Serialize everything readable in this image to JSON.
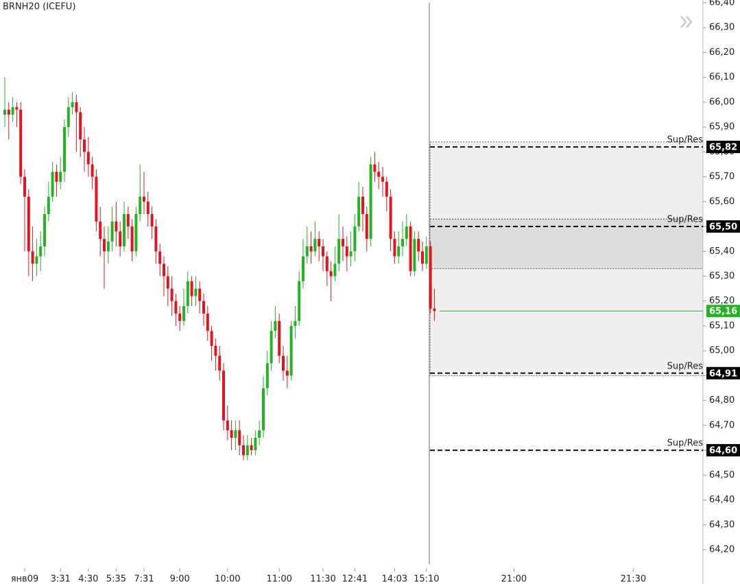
{
  "chart_data": {
    "type": "candlestick",
    "title": "BRNH20 (ICEFU)",
    "up_color": "#22b422",
    "down_color": "#e3141c",
    "ylim": [
      64.2,
      66.4
    ],
    "yticks": [
      {
        "value": 66.4,
        "label": "66,40"
      },
      {
        "value": 66.3,
        "label": "66,30"
      },
      {
        "value": 66.2,
        "label": "66,20"
      },
      {
        "value": 66.1,
        "label": "66,10"
      },
      {
        "value": 66.0,
        "label": "66,00"
      },
      {
        "value": 65.9,
        "label": "65,90"
      },
      {
        "value": 65.8,
        "label": "65,80"
      },
      {
        "value": 65.7,
        "label": "65,70"
      },
      {
        "value": 65.6,
        "label": "65,60"
      },
      {
        "value": 65.5,
        "label": "65,50"
      },
      {
        "value": 65.4,
        "label": "65,40"
      },
      {
        "value": 65.3,
        "label": "65,30"
      },
      {
        "value": 65.2,
        "label": "65,20"
      },
      {
        "value": 65.1,
        "label": "65,10"
      },
      {
        "value": 65.0,
        "label": "65,00"
      },
      {
        "value": 64.9,
        "label": "64,90"
      },
      {
        "value": 64.8,
        "label": "64,80"
      },
      {
        "value": 64.7,
        "label": "64,70"
      },
      {
        "value": 64.6,
        "label": "64,60"
      },
      {
        "value": 64.5,
        "label": "64,50"
      },
      {
        "value": 64.4,
        "label": "64,40"
      },
      {
        "value": 64.3,
        "label": "64,30"
      },
      {
        "value": 64.2,
        "label": "64,20"
      }
    ],
    "categories": [
      null,
      null,
      null,
      null,
      null,
      "янв09",
      null,
      null,
      null,
      null,
      null,
      null,
      null,
      null,
      "3:31",
      null,
      null,
      null,
      null,
      null,
      null,
      "4:30",
      null,
      null,
      null,
      null,
      null,
      null,
      "5:35",
      null,
      null,
      null,
      null,
      null,
      null,
      "7:31",
      null,
      null,
      null,
      null,
      null,
      null,
      null,
      null,
      "9:00",
      null,
      null,
      null,
      null,
      null,
      null,
      null,
      null,
      null,
      null,
      null,
      "10:00",
      null,
      null,
      null,
      null,
      null,
      null,
      null,
      null,
      null,
      null,
      null,
      null,
      "11:00",
      null,
      null,
      null,
      null,
      null,
      null,
      null,
      null,
      null,
      null,
      "11:30",
      null,
      null,
      null,
      null,
      null,
      null,
      null,
      "12:41",
      null,
      null,
      null,
      null,
      null,
      null,
      null,
      null,
      null,
      "14:03",
      null,
      null,
      null,
      null,
      null,
      null,
      null,
      "15:10",
      null,
      null,
      null,
      null,
      null,
      null,
      null,
      null,
      null,
      null,
      null,
      null,
      null,
      null,
      null,
      null,
      null,
      null,
      null,
      null,
      null,
      "21:00",
      null,
      null,
      null,
      null,
      null,
      null,
      null,
      null,
      null,
      null,
      null,
      null,
      null,
      null,
      null,
      null,
      null,
      null,
      null,
      null,
      null,
      null,
      null,
      null,
      null,
      null,
      null,
      null,
      null,
      "21:30",
      null
    ],
    "open": [
      65.95,
      65.97,
      65.95,
      65.98,
      65.97,
      65.7,
      65.62,
      65.4,
      65.35,
      65.38,
      65.42,
      65.55,
      65.62,
      65.72,
      65.68,
      65.72,
      65.9,
      65.98,
      66.0,
      65.96,
      65.85,
      65.8,
      65.75,
      65.7,
      65.52,
      65.45,
      65.4,
      65.44,
      65.52,
      65.48,
      65.42,
      65.55,
      65.5,
      65.4,
      65.55,
      65.62,
      65.6,
      65.55,
      65.5,
      65.4,
      65.35,
      65.3,
      65.25,
      65.2,
      65.15,
      65.12,
      65.18,
      65.28,
      65.22,
      65.25,
      65.2,
      65.15,
      65.08,
      65.02,
      64.98,
      64.92,
      64.72,
      64.68,
      64.65,
      64.68,
      64.62,
      64.58,
      64.62,
      64.6,
      64.65,
      64.68,
      64.85,
      64.95,
      65.08,
      65.12,
      64.98,
      64.92,
      64.9,
      65.1,
      65.12,
      65.28,
      65.38,
      65.42,
      65.4,
      65.45,
      65.42,
      65.38,
      65.32,
      65.3,
      65.35,
      65.45,
      65.42,
      65.38,
      65.4,
      65.5,
      65.62,
      65.55,
      65.45,
      65.75,
      65.72,
      65.7,
      65.68,
      65.62,
      65.45,
      65.38,
      65.42,
      65.45,
      65.5,
      65.32,
      65.45,
      65.4,
      65.35,
      65.42,
      65.17,
      null,
      null,
      null,
      null,
      null,
      null,
      null,
      null,
      null,
      null,
      null,
      null,
      null,
      null,
      null,
      null,
      null,
      null,
      null,
      null,
      null,
      null,
      null,
      null,
      null,
      null,
      null,
      null,
      null,
      null,
      null,
      null,
      null,
      null,
      null,
      null,
      null,
      null,
      null,
      null,
      null,
      null,
      null,
      null,
      null,
      null,
      null,
      null,
      null,
      null,
      null
    ],
    "high": [
      66.1,
      66.0,
      66.02,
      66.0,
      66.0,
      65.73,
      65.65,
      65.5,
      65.45,
      65.48,
      65.58,
      65.68,
      65.76,
      65.75,
      65.78,
      65.93,
      66.02,
      66.04,
      66.03,
      65.98,
      65.9,
      65.86,
      65.78,
      65.73,
      65.58,
      65.5,
      65.5,
      65.58,
      65.6,
      65.52,
      65.6,
      65.58,
      65.53,
      65.58,
      65.75,
      65.72,
      65.64,
      65.58,
      65.53,
      65.43,
      65.38,
      65.34,
      65.3,
      65.23,
      65.18,
      65.25,
      65.32,
      65.3,
      65.3,
      65.28,
      65.23,
      65.18,
      65.1,
      65.05,
      65.02,
      64.95,
      64.78,
      64.72,
      64.72,
      64.72,
      64.66,
      64.66,
      64.65,
      64.68,
      64.72,
      64.9,
      65.0,
      65.12,
      65.18,
      65.15,
      65.02,
      64.98,
      65.12,
      65.18,
      65.32,
      65.45,
      65.5,
      65.48,
      65.52,
      65.48,
      65.45,
      65.4,
      65.36,
      65.42,
      65.55,
      65.5,
      65.46,
      65.48,
      65.55,
      65.68,
      65.66,
      65.58,
      65.78,
      65.8,
      65.76,
      65.74,
      65.7,
      65.65,
      65.48,
      65.48,
      65.52,
      65.55,
      65.52,
      65.48,
      65.48,
      65.44,
      65.46,
      65.44,
      65.25,
      null,
      null,
      null,
      null,
      null,
      null,
      null,
      null,
      null,
      null,
      null,
      null,
      null,
      null,
      null,
      null,
      null,
      null,
      null,
      null,
      null,
      null,
      null,
      null,
      null,
      null,
      null,
      null,
      null,
      null,
      null,
      null,
      null,
      null,
      null,
      null,
      null,
      null,
      null,
      null,
      null,
      null,
      null,
      null,
      null,
      null,
      null,
      null,
      null,
      null,
      null
    ],
    "low": [
      65.9,
      65.85,
      65.92,
      65.9,
      65.67,
      65.4,
      65.3,
      65.28,
      65.3,
      65.32,
      65.38,
      65.52,
      65.6,
      65.62,
      65.65,
      65.68,
      65.86,
      65.95,
      65.8,
      65.78,
      65.72,
      65.7,
      65.65,
      65.48,
      65.38,
      65.25,
      65.35,
      65.4,
      65.42,
      65.38,
      65.4,
      65.45,
      65.36,
      65.38,
      65.52,
      65.55,
      65.5,
      65.45,
      65.35,
      65.3,
      65.22,
      65.18,
      65.14,
      65.1,
      65.08,
      65.1,
      65.15,
      65.18,
      65.18,
      65.15,
      65.1,
      65.04,
      64.96,
      64.92,
      64.88,
      64.68,
      64.64,
      64.6,
      64.6,
      64.58,
      64.56,
      64.56,
      64.58,
      64.58,
      64.62,
      64.65,
      64.82,
      64.92,
      65.05,
      64.95,
      64.88,
      64.85,
      64.88,
      65.05,
      65.1,
      65.25,
      65.35,
      65.35,
      65.38,
      65.36,
      65.32,
      65.26,
      65.2,
      65.28,
      65.32,
      65.36,
      65.32,
      65.34,
      65.36,
      65.48,
      65.48,
      65.4,
      65.42,
      65.68,
      65.65,
      65.62,
      65.56,
      65.4,
      65.35,
      65.35,
      65.38,
      65.42,
      65.3,
      65.3,
      65.36,
      65.32,
      65.33,
      65.15,
      65.12,
      null,
      null,
      null,
      null,
      null,
      null,
      null,
      null,
      null,
      null,
      null,
      null,
      null,
      null,
      null,
      null,
      null,
      null,
      null,
      null,
      null,
      null,
      null,
      null,
      null,
      null,
      null,
      null,
      null,
      null,
      null,
      null,
      null,
      null,
      null,
      null,
      null,
      null,
      null,
      null,
      null,
      null,
      null,
      null,
      null,
      null,
      null,
      null,
      null,
      null,
      null
    ],
    "close": [
      65.97,
      65.95,
      65.98,
      65.97,
      65.7,
      65.62,
      65.4,
      65.35,
      65.38,
      65.42,
      65.55,
      65.62,
      65.72,
      65.68,
      65.72,
      65.9,
      65.98,
      66.0,
      65.96,
      65.85,
      65.8,
      65.75,
      65.7,
      65.52,
      65.45,
      65.4,
      65.44,
      65.52,
      65.48,
      65.42,
      65.55,
      65.5,
      65.4,
      65.55,
      65.62,
      65.6,
      65.55,
      65.5,
      65.4,
      65.35,
      65.3,
      65.25,
      65.2,
      65.15,
      65.12,
      65.18,
      65.28,
      65.22,
      65.25,
      65.2,
      65.15,
      65.08,
      65.02,
      64.98,
      64.92,
      64.72,
      64.68,
      64.65,
      64.68,
      64.62,
      64.58,
      64.62,
      64.6,
      64.65,
      64.68,
      64.85,
      64.95,
      65.08,
      65.12,
      64.98,
      64.92,
      64.9,
      65.1,
      65.12,
      65.28,
      65.38,
      65.42,
      65.4,
      65.45,
      65.42,
      65.38,
      65.32,
      65.3,
      65.35,
      65.45,
      65.42,
      65.38,
      65.4,
      65.5,
      65.62,
      65.55,
      65.45,
      65.75,
      65.72,
      65.7,
      65.68,
      65.62,
      65.45,
      65.38,
      65.42,
      65.45,
      65.5,
      65.32,
      65.45,
      65.4,
      65.35,
      65.42,
      65.17,
      65.16,
      null,
      null,
      null,
      null,
      null,
      null,
      null,
      null,
      null,
      null,
      null,
      null,
      null,
      null,
      null,
      null,
      null,
      null,
      null,
      null,
      null,
      null,
      null,
      null,
      null,
      null,
      null,
      null,
      null,
      null,
      null,
      null,
      null,
      null,
      null,
      null,
      null,
      null,
      null,
      null,
      null,
      null,
      null,
      null,
      null,
      null,
      null,
      null,
      null,
      null,
      null
    ],
    "zones": [
      {
        "from": 65.84,
        "to": 64.9,
        "color": "#efefef"
      },
      {
        "from": 65.53,
        "to": 65.33,
        "color": "#dcdcdc"
      }
    ],
    "levels": [
      {
        "label": "Sup/Res",
        "value": 65.82,
        "value_label": "65,82"
      },
      {
        "label": "Sup/Res",
        "value": 65.5,
        "value_label": "65,50"
      },
      {
        "label": "Sup/Res",
        "value": 64.91,
        "value_label": "64,91"
      },
      {
        "label": "Sup/Res",
        "value": 64.6,
        "value_label": "64,60"
      }
    ],
    "last": {
      "value": 65.16,
      "value_label": "65,16",
      "color": "#22b422"
    }
  }
}
